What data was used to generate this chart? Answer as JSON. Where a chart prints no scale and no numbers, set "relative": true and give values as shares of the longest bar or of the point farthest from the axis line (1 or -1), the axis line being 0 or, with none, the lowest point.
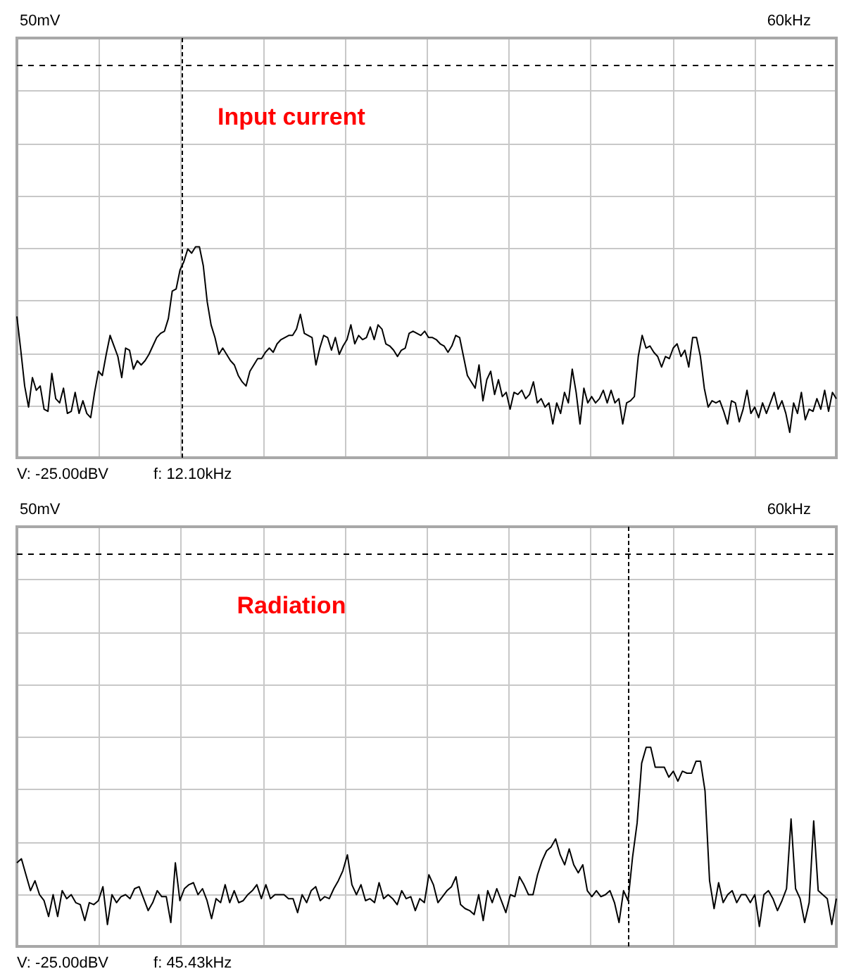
{
  "chart_data": [
    {
      "type": "line",
      "title": "Input current",
      "relative": true,
      "grid": true,
      "marker": "none",
      "annotations": [
        "50mV",
        "60kHz",
        "V: -25.00dBV",
        "f: 12.10kHz"
      ],
      "ref_lines": [
        {
          "axis": "y",
          "value": 1.86,
          "color": "#000000",
          "line_style": "dashed"
        }
      ],
      "categories": [
        null,
        null,
        null,
        null,
        null,
        null,
        null,
        null,
        null,
        null,
        null,
        null,
        null,
        null,
        null,
        null,
        null,
        null,
        null,
        null,
        null,
        null,
        null,
        null,
        null,
        null,
        null,
        null,
        null,
        null,
        null,
        null,
        null,
        null,
        null,
        null,
        null,
        null,
        null,
        null,
        null,
        null,
        null,
        null,
        null,
        null,
        null,
        null,
        null,
        null,
        null,
        null,
        null,
        null,
        null,
        null,
        null,
        null,
        null,
        null,
        null,
        null,
        null,
        null,
        null,
        null,
        null,
        null,
        null,
        null,
        null,
        null,
        null,
        null,
        null,
        null,
        null,
        null,
        null,
        null,
        null,
        null,
        null,
        null,
        null,
        null,
        null,
        null,
        null,
        null,
        null,
        null,
        null,
        null,
        null,
        null,
        null,
        null,
        null,
        null,
        null,
        null,
        null,
        null,
        null,
        null,
        null,
        null,
        null,
        null,
        null,
        null,
        null,
        null,
        null,
        null,
        null,
        null,
        null,
        null,
        null,
        null,
        null,
        null,
        null,
        null,
        null,
        null,
        null,
        null,
        null,
        null,
        null,
        null,
        null,
        null,
        null,
        null,
        null,
        null,
        null,
        null,
        null,
        null,
        null,
        null,
        null,
        null,
        null,
        null,
        null,
        null,
        null,
        null,
        null,
        null,
        null,
        null,
        null,
        null,
        null,
        null,
        null,
        null,
        null,
        null,
        null,
        null,
        null,
        null,
        null,
        null,
        null,
        null,
        null,
        null,
        null,
        null,
        null,
        null,
        null,
        null,
        null,
        null,
        null,
        null,
        null,
        null,
        null,
        null,
        null,
        null,
        null,
        null,
        null,
        null,
        null,
        null,
        null,
        null,
        null,
        null,
        null,
        null,
        null,
        null,
        null,
        null,
        null,
        null,
        null,
        null
      ],
      "series": [
        {
          "color": "#000000",
          "values": [
            0.67,
            0.51,
            0.34,
            0.24,
            0.38,
            0.32,
            0.34,
            0.23,
            0.22,
            0.4,
            0.28,
            0.26,
            0.33,
            0.21,
            0.22,
            0.31,
            0.21,
            0.27,
            0.21,
            0.19,
            0.31,
            0.41,
            0.39,
            0.49,
            0.58,
            0.53,
            0.48,
            0.38,
            0.52,
            0.51,
            0.42,
            0.46,
            0.44,
            0.46,
            0.49,
            0.53,
            0.57,
            0.59,
            0.6,
            0.66,
            0.79,
            0.8,
            0.89,
            0.93,
            0.99,
            0.97,
            1.0,
            1.0,
            0.91,
            0.74,
            0.63,
            0.57,
            0.49,
            0.52,
            0.49,
            0.46,
            0.44,
            0.39,
            0.36,
            0.34,
            0.41,
            0.44,
            0.47,
            0.47,
            0.5,
            0.52,
            0.5,
            0.54,
            0.56,
            0.57,
            0.58,
            0.58,
            0.61,
            0.68,
            0.59,
            0.58,
            0.57,
            0.44,
            0.52,
            0.58,
            0.57,
            0.51,
            0.57,
            0.49,
            0.53,
            0.56,
            0.63,
            0.54,
            0.58,
            0.56,
            0.57,
            0.62,
            0.56,
            0.63,
            0.61,
            0.54,
            0.53,
            0.51,
            0.48,
            0.51,
            0.52,
            0.59,
            0.6,
            0.59,
            0.58,
            0.6,
            0.57,
            0.57,
            0.56,
            0.54,
            0.53,
            0.5,
            0.53,
            0.58,
            0.57,
            0.48,
            0.39,
            0.36,
            0.33,
            0.44,
            0.27,
            0.37,
            0.41,
            0.3,
            0.37,
            0.29,
            0.31,
            0.23,
            0.31,
            0.3,
            0.32,
            0.28,
            0.3,
            0.36,
            0.26,
            0.28,
            0.24,
            0.26,
            0.16,
            0.26,
            0.21,
            0.31,
            0.26,
            0.42,
            0.31,
            0.16,
            0.33,
            0.26,
            0.29,
            0.26,
            0.28,
            0.32,
            0.26,
            0.32,
            0.26,
            0.28,
            0.16,
            0.26,
            0.27,
            0.29,
            0.48,
            0.58,
            0.52,
            0.53,
            0.5,
            0.48,
            0.43,
            0.48,
            0.47,
            0.52,
            0.54,
            0.48,
            0.51,
            0.43,
            0.57,
            0.57,
            0.48,
            0.33,
            0.24,
            0.27,
            0.26,
            0.27,
            0.22,
            0.16,
            0.27,
            0.26,
            0.17,
            0.23,
            0.32,
            0.21,
            0.24,
            0.19,
            0.26,
            0.21,
            0.26,
            0.31,
            0.23,
            0.27,
            0.21,
            0.12,
            0.26,
            0.21,
            0.31,
            0.18,
            0.23,
            0.22,
            0.28,
            0.23,
            0.32,
            0.22,
            0.31,
            0.28
          ]
        }
      ]
    },
    {
      "type": "line",
      "title": "Radiation",
      "relative": true,
      "grid": true,
      "marker": "none",
      "annotations": [
        "50mV",
        "60kHz",
        "V: -25.00dBV",
        "f: 45.43kHz"
      ],
      "ref_lines": [
        {
          "axis": "y",
          "value": 1.97,
          "color": "#000000",
          "line_style": "dashed"
        }
      ],
      "categories": [
        null,
        null,
        null,
        null,
        null,
        null,
        null,
        null,
        null,
        null,
        null,
        null,
        null,
        null,
        null,
        null,
        null,
        null,
        null,
        null,
        null,
        null,
        null,
        null,
        null,
        null,
        null,
        null,
        null,
        null,
        null,
        null,
        null,
        null,
        null,
        null,
        null,
        null,
        null,
        null,
        null,
        null,
        null,
        null,
        null,
        null,
        null,
        null,
        null,
        null,
        null,
        null,
        null,
        null,
        null,
        null,
        null,
        null,
        null,
        null,
        null,
        null,
        null,
        null,
        null,
        null,
        null,
        null,
        null,
        null,
        null,
        null,
        null,
        null,
        null,
        null,
        null,
        null,
        null,
        null,
        null,
        null,
        null,
        null,
        null,
        null,
        null,
        null,
        null,
        null,
        null,
        null,
        null,
        null,
        null,
        null,
        null,
        null,
        null,
        null,
        null,
        null,
        null,
        null,
        null,
        null,
        null,
        null,
        null,
        null,
        null,
        null,
        null,
        null,
        null,
        null,
        null,
        null,
        null,
        null,
        null,
        null,
        null,
        null,
        null,
        null,
        null,
        null,
        null,
        null,
        null,
        null,
        null,
        null,
        null,
        null,
        null,
        null,
        null,
        null,
        null,
        null,
        null,
        null,
        null,
        null,
        null,
        null,
        null,
        null,
        null,
        null,
        null,
        null,
        null,
        null,
        null,
        null,
        null,
        null,
        null,
        null,
        null,
        null,
        null,
        null,
        null,
        null,
        null,
        null,
        null,
        null,
        null,
        null,
        null,
        null,
        null,
        null,
        null,
        null,
        null,
        null
      ],
      "series": [
        {
          "color": "#000000",
          "values": [
            0.42,
            0.44,
            0.36,
            0.28,
            0.33,
            0.26,
            0.23,
            0.15,
            0.26,
            0.15,
            0.28,
            0.24,
            0.26,
            0.22,
            0.21,
            0.13,
            0.22,
            0.21,
            0.23,
            0.3,
            0.11,
            0.26,
            0.22,
            0.25,
            0.26,
            0.24,
            0.29,
            0.3,
            0.24,
            0.18,
            0.22,
            0.28,
            0.25,
            0.25,
            0.12,
            0.42,
            0.23,
            0.29,
            0.31,
            0.32,
            0.26,
            0.29,
            0.23,
            0.14,
            0.24,
            0.22,
            0.31,
            0.22,
            0.28,
            0.22,
            0.23,
            0.26,
            0.28,
            0.31,
            0.24,
            0.31,
            0.24,
            0.26,
            0.26,
            0.26,
            0.24,
            0.24,
            0.17,
            0.26,
            0.22,
            0.28,
            0.3,
            0.23,
            0.25,
            0.24,
            0.29,
            0.33,
            0.38,
            0.46,
            0.31,
            0.26,
            0.31,
            0.23,
            0.24,
            0.22,
            0.32,
            0.24,
            0.26,
            0.24,
            0.21,
            0.28,
            0.24,
            0.25,
            0.18,
            0.24,
            0.22,
            0.36,
            0.31,
            0.22,
            0.25,
            0.28,
            0.3,
            0.35,
            0.21,
            0.19,
            0.18,
            0.16,
            0.26,
            0.13,
            0.28,
            0.22,
            0.29,
            0.23,
            0.17,
            0.26,
            0.25,
            0.35,
            0.31,
            0.26,
            0.26,
            0.36,
            0.43,
            0.48,
            0.5,
            0.54,
            0.46,
            0.41,
            0.49,
            0.41,
            0.37,
            0.41,
            0.28,
            0.25,
            0.28,
            0.25,
            0.26,
            0.28,
            0.22,
            0.12,
            0.28,
            0.23,
            0.45,
            0.62,
            0.92,
            1.0,
            1.0,
            0.9,
            0.9,
            0.9,
            0.85,
            0.88,
            0.83,
            0.88,
            0.87,
            0.87,
            0.93,
            0.93,
            0.78,
            0.33,
            0.19,
            0.32,
            0.22,
            0.26,
            0.28,
            0.22,
            0.26,
            0.26,
            0.22,
            0.26,
            0.1,
            0.26,
            0.28,
            0.24,
            0.18,
            0.23,
            0.29,
            0.64,
            0.29,
            0.24,
            0.12,
            0.22,
            0.63,
            0.28,
            0.26,
            0.24,
            0.11,
            0.24
          ]
        }
      ]
    }
  ]
}
